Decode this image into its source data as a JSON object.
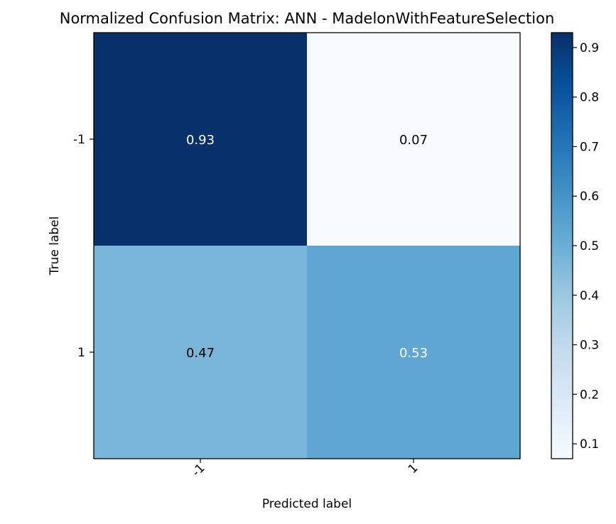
{
  "chart_data": {
    "type": "heatmap",
    "title": "Normalized Confusion Matrix: ANN - MadelonWithFeatureSelection",
    "xlabel": "Predicted label",
    "ylabel": "True label",
    "x_categories": [
      "-1",
      "1"
    ],
    "y_categories": [
      "-1",
      "1"
    ],
    "values": [
      [
        0.93,
        0.07
      ],
      [
        0.47,
        0.53
      ]
    ],
    "value_labels": [
      [
        "0.93",
        "0.07"
      ],
      [
        "0.47",
        "0.53"
      ]
    ],
    "colormap": "Blues",
    "colorbar": {
      "range": [
        0.07,
        0.93
      ],
      "ticks": [
        0.1,
        0.2,
        0.3,
        0.4,
        0.5,
        0.6,
        0.7,
        0.8,
        0.9
      ],
      "tick_labels": [
        "0.1",
        "0.2",
        "0.3",
        "0.4",
        "0.5",
        "0.6",
        "0.7",
        "0.8",
        "0.9"
      ]
    },
    "text_colors": {
      "dark_cell": "#ffffff",
      "light_cell": "#000000"
    },
    "grid": false
  }
}
